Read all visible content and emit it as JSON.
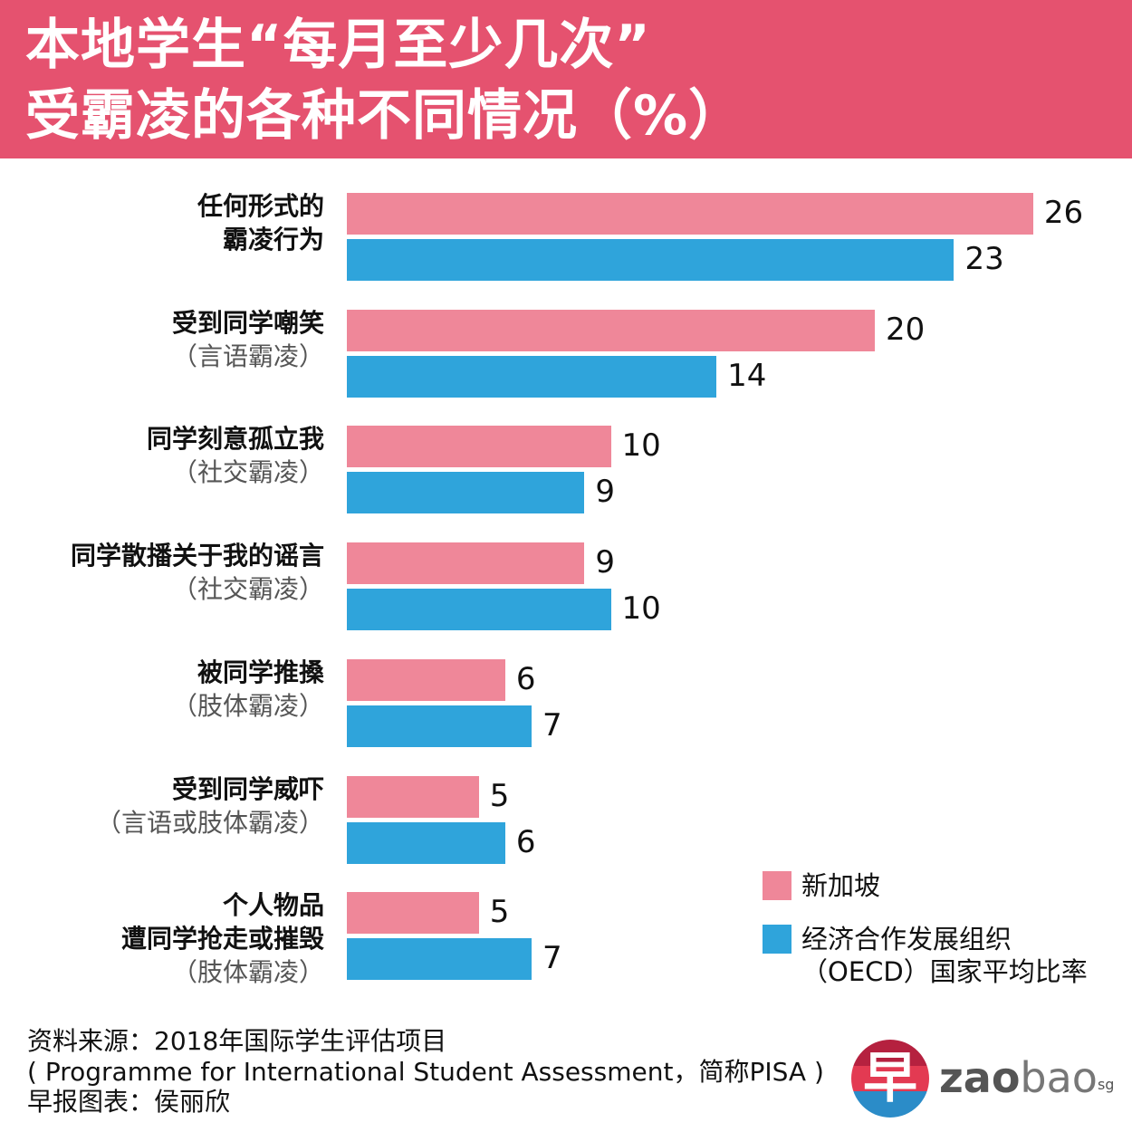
{
  "header": {
    "title_line1": "本地学生“每月至少几次”",
    "title_line2": "受霸凌的各种不同情况（%）"
  },
  "colors": {
    "header": "#E5526F",
    "singapore": "#EF8799",
    "oecd": "#2FA4DB"
  },
  "chart_data": {
    "type": "bar",
    "orientation": "horizontal",
    "title": "本地学生“每月至少几次”受霸凌的各种不同情况（%）",
    "unit": "%",
    "categories": [
      {
        "bold": [
          "任何形式的",
          "霸凌行为"
        ],
        "sub": ""
      },
      {
        "bold": [
          "受到同学嘲笑"
        ],
        "sub": "（言语霸凌）"
      },
      {
        "bold": [
          "同学刻意孤立我"
        ],
        "sub": "（社交霸凌）"
      },
      {
        "bold": [
          "同学散播关于我的谣言"
        ],
        "sub": "（社交霸凌）"
      },
      {
        "bold": [
          "被同学推搡"
        ],
        "sub": "（肢体霸凌）"
      },
      {
        "bold": [
          "受到同学威吓"
        ],
        "sub": "（言语或肢体霸凌）"
      },
      {
        "bold": [
          "个人物品",
          "遭同学抢走或摧毁"
        ],
        "sub": "（肢体霸凌）"
      }
    ],
    "series": [
      {
        "name": "新加坡",
        "color": "#EF8799",
        "values": [
          26,
          20,
          10,
          9,
          6,
          5,
          5
        ]
      },
      {
        "name": "经济合作发展组织（OECD）国家平均比率",
        "color": "#2FA4DB",
        "values": [
          23,
          14,
          9,
          10,
          7,
          6,
          7
        ]
      }
    ],
    "xlim": [
      0,
      26
    ],
    "grid": false,
    "legend_position": "bottom-right"
  },
  "legend": {
    "singapore": "新加坡",
    "oecd_line1": "经济合作发展组织",
    "oecd_line2": "（OECD）国家平均比率"
  },
  "footer": {
    "source": "资料来源：2018年国际学生评估项目",
    "source_full": "( Programme for International Student Assessment，简称PISA )",
    "credit": "早报图表：侯丽欣"
  },
  "logo": {
    "glyph": "早",
    "zao": "zao",
    "bao": "bao",
    "sg": "sg"
  }
}
